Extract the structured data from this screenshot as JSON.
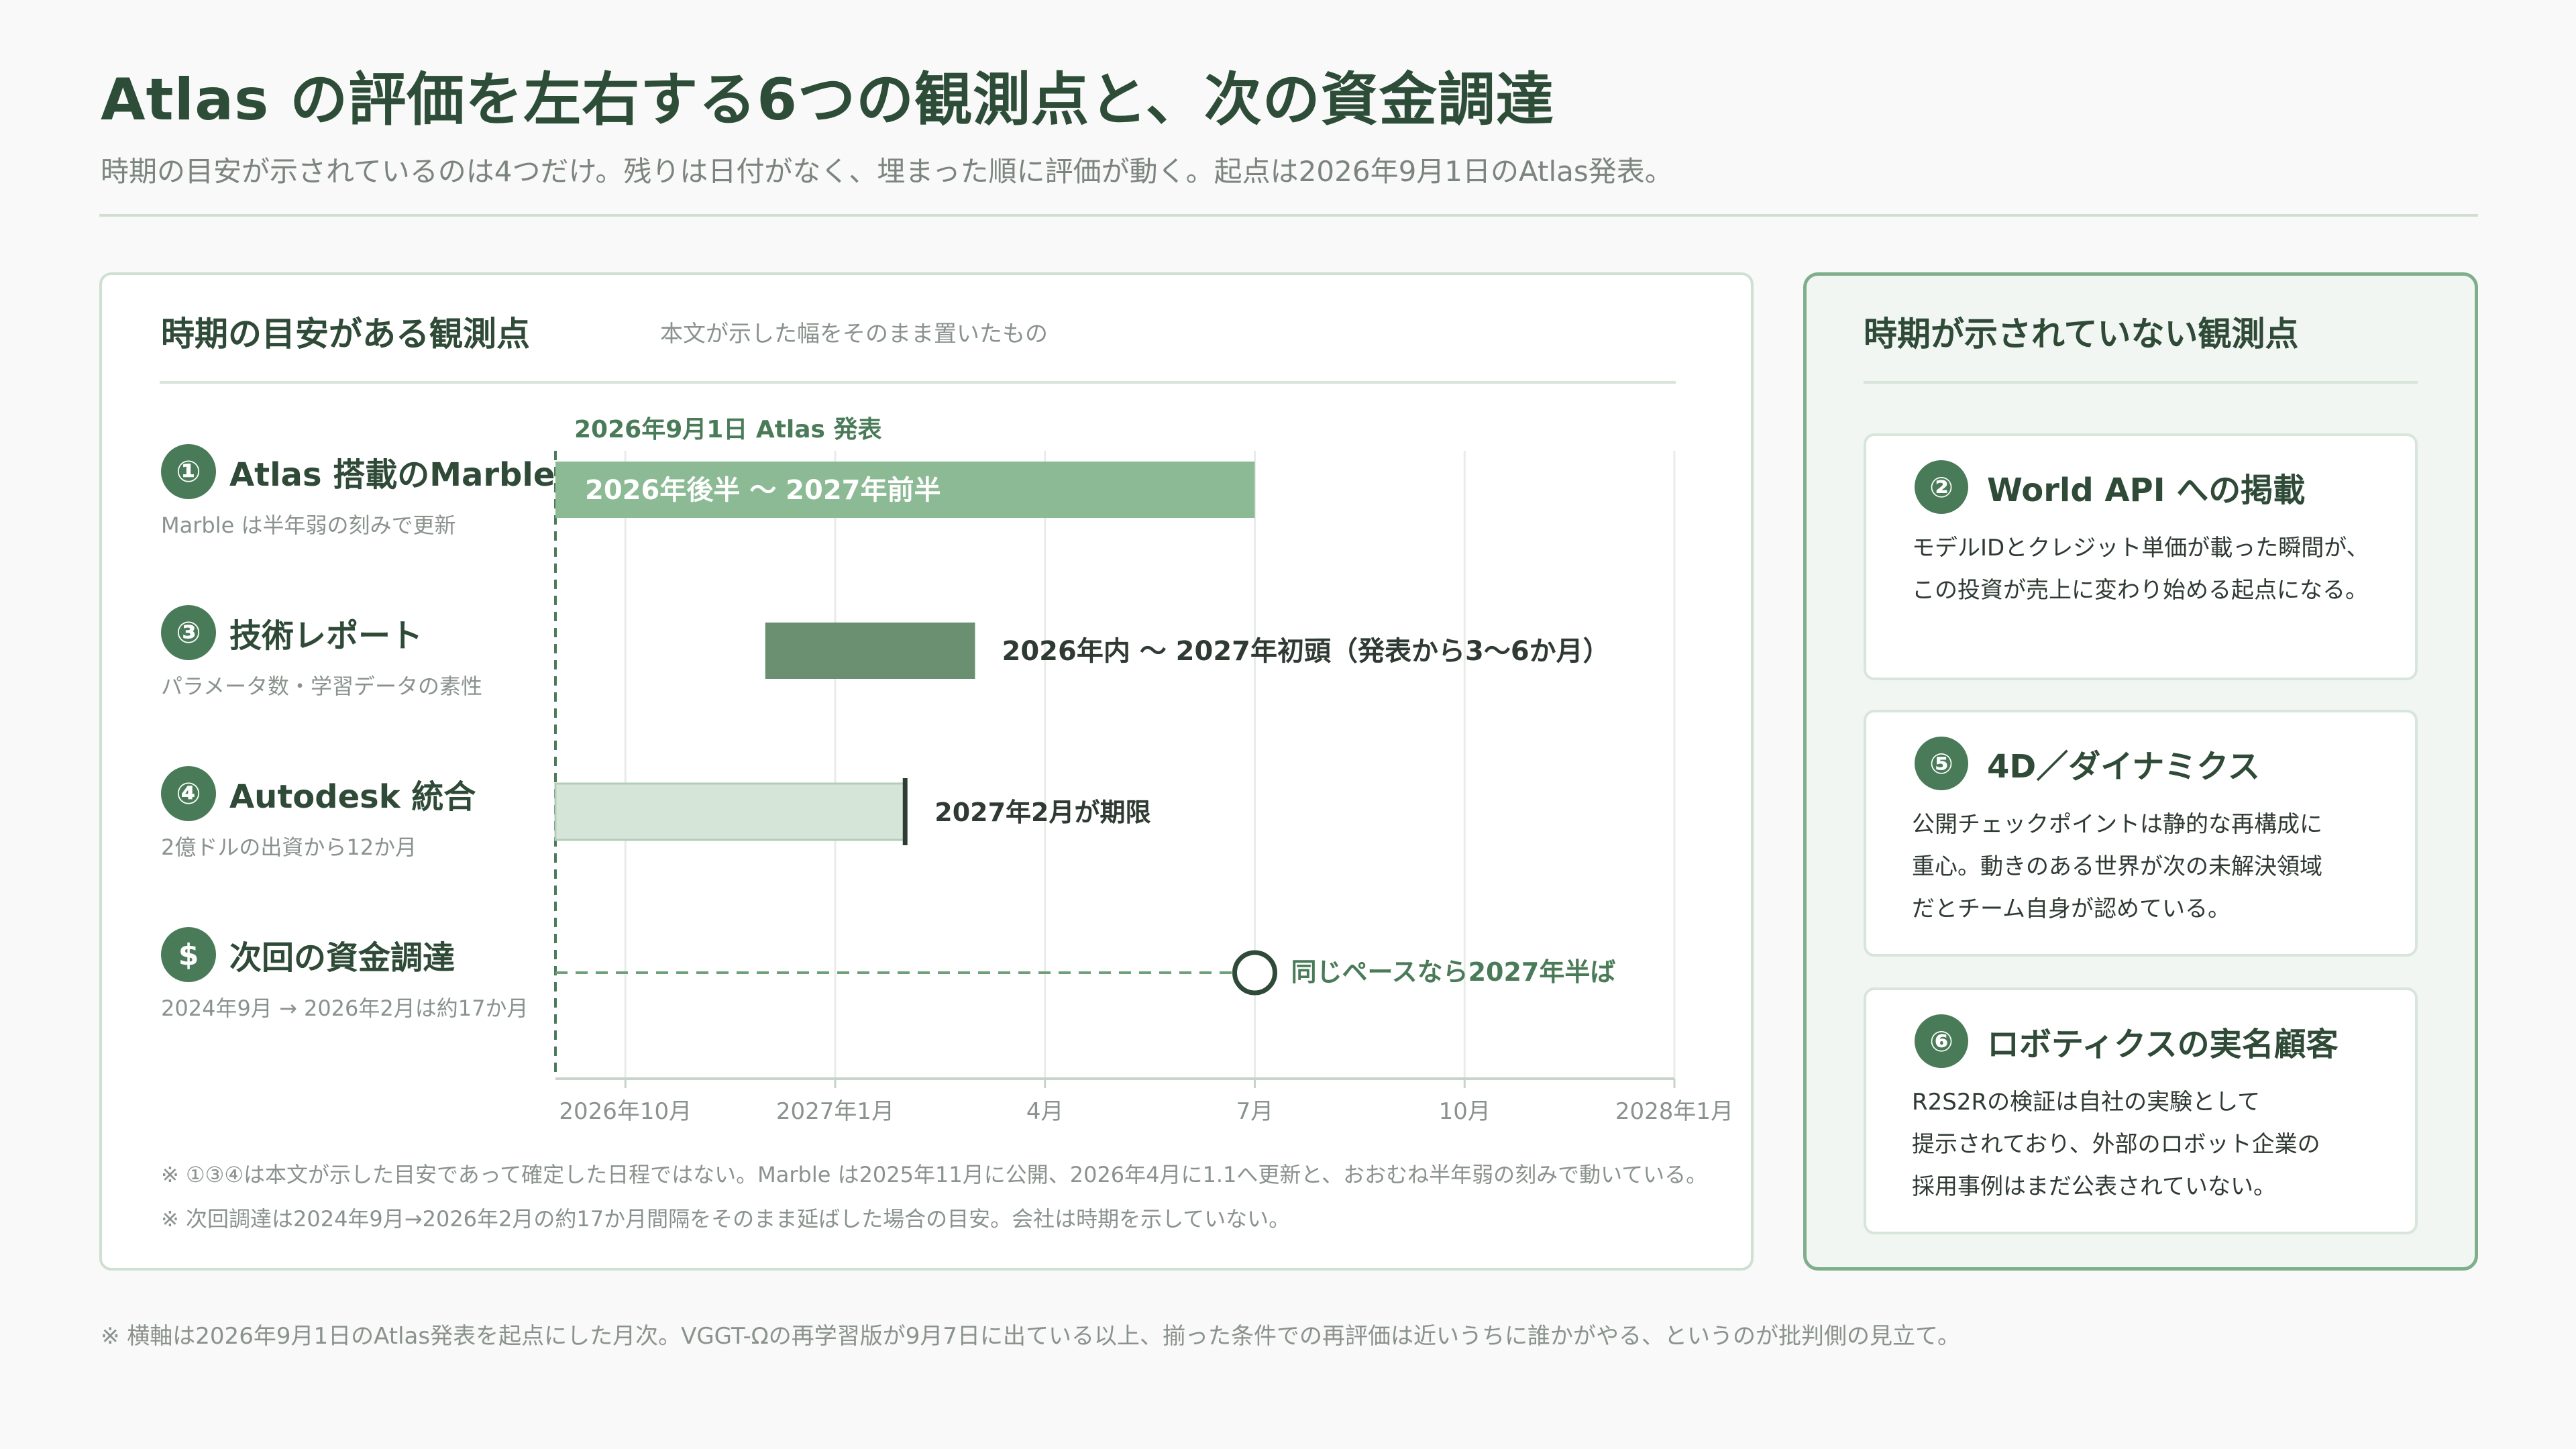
{
  "title": "Atlas の評価を左右する6つの観測点と、次の資金調達",
  "subtitle": "時期の目安が示されているのは4つだけ。残りは日付がなく、埋まった順に評価が動く。起点は2026年9月1日のAtlas発表。",
  "left_card": {
    "heading": "時期の目安がある観測点",
    "note": "本文が示した幅をそのまま置いたもの",
    "rows": [
      {
        "num": "①",
        "title": "Atlas 搭載のMarble",
        "sub": "Marble は半年弱の刻みで更新"
      },
      {
        "num": "③",
        "title": "技術レポート",
        "sub": "パラメータ数・学習データの素性"
      },
      {
        "num": "④",
        "title": "Autodesk 統合",
        "sub": "2億ドルの出資から12か月"
      },
      {
        "num": "$",
        "title": "次回の資金調達",
        "sub": "2024年9月 → 2026年2月は約17か月"
      }
    ],
    "footnotes": [
      "※ ①③④は本文が示した目安であって確定した日程ではない。Marble は2025年11月に公開、2026年4月に1.1へ更新と、おおむね半年弱の刻みで動いている。",
      "※ 次回調達は2024年9月→2026年2月の約17か月間隔をそのまま延ばした場合の目安。会社は時期を示していない。"
    ]
  },
  "chart_data": {
    "type": "gantt",
    "x_unit": "month",
    "x_range": [
      "2026-09-01",
      "2028-01-01"
    ],
    "x_ticks": [
      {
        "date": "2026-10-01",
        "label": "2026年10月"
      },
      {
        "date": "2027-01-01",
        "label": "2027年1月"
      },
      {
        "date": "2027-04-01",
        "label": "4月"
      },
      {
        "date": "2027-07-01",
        "label": "7月"
      },
      {
        "date": "2027-10-01",
        "label": "10月"
      },
      {
        "date": "2028-01-01",
        "label": "2028年1月"
      }
    ],
    "start_marker": {
      "date": "2026-09-01",
      "label": "2026年9月1日 Atlas 発表"
    },
    "bars": [
      {
        "row": 0,
        "kind": "range",
        "start": "2026-09-01",
        "end": "2027-07-01",
        "label": "2026年後半 〜 2027年前半",
        "label_inside": true,
        "color": "#8cba95"
      },
      {
        "row": 1,
        "kind": "range",
        "start": "2026-12-01",
        "end": "2027-03-01",
        "label": "2026年内 〜 2027年初頭（発表から3〜6か月）",
        "label_inside": false,
        "color": "#6a8f71"
      },
      {
        "row": 2,
        "kind": "deadline",
        "start": "2026-09-01",
        "end": "2027-02-01",
        "label": "2027年2月が期限",
        "color": "#d5e5d8",
        "edge_color": "#2f3e34"
      },
      {
        "row": 3,
        "kind": "projection",
        "start": "2026-09-01",
        "end": "2027-07-01",
        "label": "同じペースなら2027年半ば",
        "color": "#6f9f7a"
      }
    ],
    "colors": {
      "accent": "#4a7b58",
      "grid": "#e8ece9",
      "axis": "#c8d3cb"
    }
  },
  "right_card": {
    "heading": "時期が示されていない観測点",
    "items": [
      {
        "num": "②",
        "title": "World API への掲載",
        "lines": [
          "モデルIDとクレジット単価が載った瞬間が、",
          "この投資が売上に変わり始める起点になる。"
        ]
      },
      {
        "num": "⑤",
        "title": "4D／ダイナミクス",
        "lines": [
          "公開チェックポイントは静的な再構成に",
          "重心。動きのある世界が次の未解決領域",
          "だとチーム自身が認めている。"
        ]
      },
      {
        "num": "⑥",
        "title": "ロボティクスの実名顧客",
        "lines": [
          "R2S2Rの検証は自社の実験として",
          "提示されており、外部のロボット企業の",
          "採用事例はまだ公表されていない。"
        ]
      }
    ]
  },
  "bottom_note": "※ 横軸は2026年9月1日のAtlas発表を起点にした月次。VGGT-Ωの再学習版が9月7日に出ている以上、揃った条件での再評価は近いうちに誰かがやる、というのが批判側の見立て。"
}
